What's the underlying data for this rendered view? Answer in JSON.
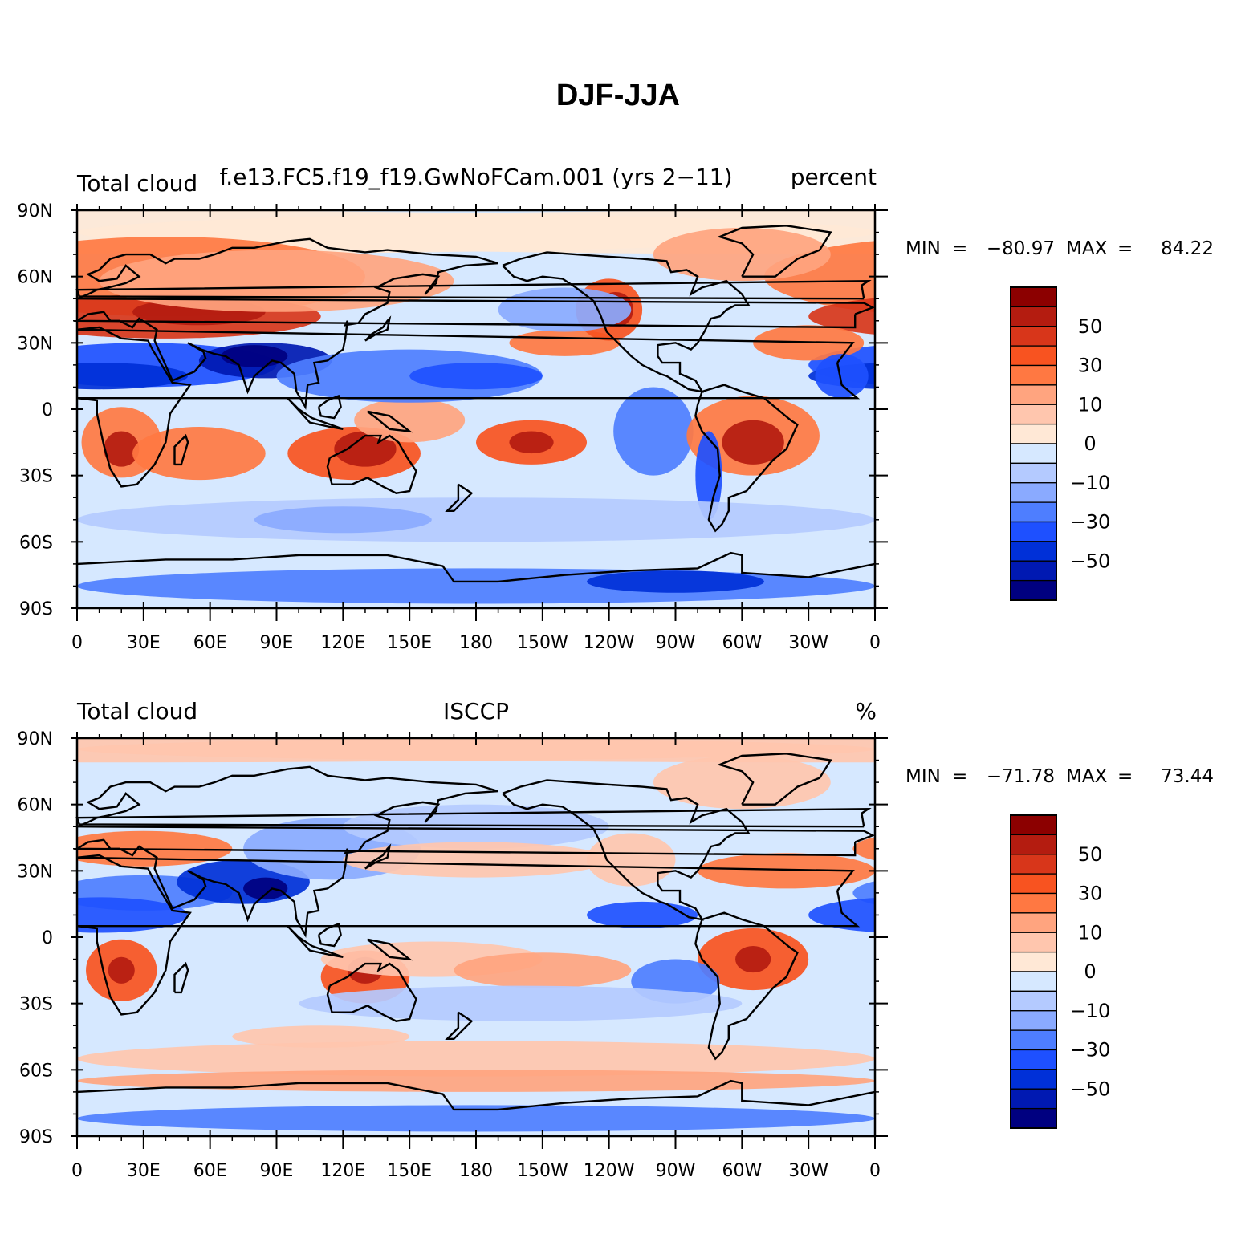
{
  "figure_title": "DJF-JJA",
  "colors": {
    "palette": [
      "#000080",
      "#0019B2",
      "#0030D8",
      "#1E50FF",
      "#4E7EFF",
      "#8AAAFF",
      "#B4CAFF",
      "#D6E8FF",
      "#FFE8D6",
      "#FFC6AE",
      "#FFA47F",
      "#FF7842",
      "#F85320",
      "#D8361A",
      "#B41C10",
      "#8C0000"
    ],
    "land_outline": "#000000"
  },
  "panels": [
    {
      "id": "model",
      "left_label": "Total  cloud",
      "center_label": "f.e13.FC5.f19_f19.GwNoFCam.001 (yrs 2−11)",
      "right_label": "percent",
      "min_label": "MIN",
      "min_value": "−80.97",
      "max_label": "MAX",
      "max_value": "84.22",
      "colorbar_labels": [
        "50",
        "30",
        "10",
        "0",
        "−10",
        "−30",
        "−50"
      ],
      "lat_ticks": [
        "90N",
        "60N",
        "30N",
        "0",
        "30S",
        "60S",
        "90S"
      ],
      "lon_ticks": [
        "0",
        "30E",
        "60E",
        "90E",
        "120E",
        "150E",
        "180",
        "150W",
        "120W",
        "90W",
        "60W",
        "30W",
        "0"
      ]
    },
    {
      "id": "obs",
      "left_label": "Total  cloud",
      "center_label": "ISCCP",
      "right_label": "%",
      "min_label": "MIN",
      "min_value": "−71.78",
      "max_label": "MAX",
      "max_value": "73.44",
      "colorbar_labels": [
        "50",
        "30",
        "10",
        "0",
        "−10",
        "−30",
        "−50"
      ],
      "lat_ticks": [
        "90N",
        "60N",
        "30N",
        "0",
        "30S",
        "60S",
        "90S"
      ],
      "lon_ticks": [
        "0",
        "30E",
        "60E",
        "90E",
        "120E",
        "150E",
        "180",
        "150W",
        "120W",
        "90W",
        "60W",
        "30W",
        "0"
      ]
    }
  ]
}
